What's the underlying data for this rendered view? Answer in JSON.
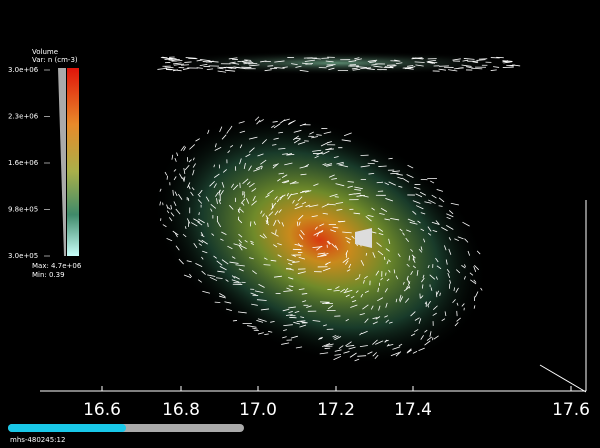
{
  "legend": {
    "title": "Volume",
    "variable": "Var: n (cm-3)",
    "labels": [
      "3.0e+06",
      "2.3e+06",
      "1.6e+06",
      "9.8e+05",
      "3.0e+05"
    ],
    "max": "Max: 4.7e+06",
    "min": "Min: 0.39"
  },
  "axis": {
    "labels": [
      "16.6",
      "16.8",
      "17.0",
      "17.2",
      "17.4",
      "17.6"
    ]
  },
  "footer": "mhs-480245:12"
}
